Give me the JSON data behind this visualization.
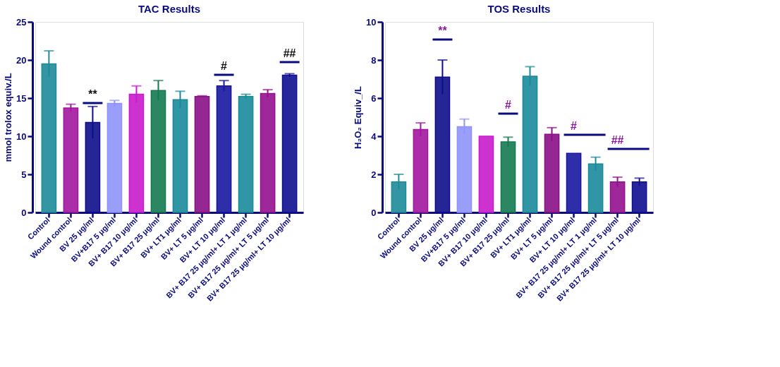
{
  "chart_data": [
    {
      "type": "bar",
      "title": "TAC Results",
      "ylabel": "mmol trolox equiv./L",
      "categories": [
        "Control",
        "Wound control",
        "BV 25 μg/ml",
        "BV+B17 5 μg/ml",
        "BV+ B17 10 μg/ml",
        "BV+ B17 25 μg/ml",
        "BV+ LT1 μg/ml",
        "BV+ LT 5 μg/ml",
        "BV+ LT 10 μg/ml",
        "BV+ B17 25 μg/ml+ LT 1 μg/ml",
        "BV+ B17 25 μg/ml+ LT 5 μg/ml",
        "BV+ B17 25 μg/ml+ LT 10 μg/ml"
      ],
      "values": [
        19.5,
        13.7,
        11.8,
        14.3,
        15.5,
        16.0,
        14.8,
        15.2,
        16.6,
        15.2,
        15.6,
        18.0
      ],
      "errors": [
        1.7,
        0.5,
        2.1,
        0.4,
        1.1,
        1.3,
        1.1,
        0.1,
        0.7,
        0.3,
        0.5,
        0.2
      ],
      "colors": [
        "#1e8b99",
        "#a3169f",
        "#0d0d8a",
        "#8f94fa",
        "#c81ccc",
        "#147a50",
        "#1a8a9a",
        "#8a1087",
        "#1717a0",
        "#1a8a9a",
        "#93108f",
        "#101090"
      ],
      "ylim": [
        0,
        25
      ],
      "yticks": [
        0,
        5,
        10,
        15,
        20,
        25
      ],
      "grid": false,
      "annotations": [
        "**",
        "#",
        "##"
      ]
    },
    {
      "type": "bar",
      "title": "TOS Results",
      "ylabel": "H₂O₂ Equiv_/L",
      "categories": [
        "Control",
        "Wound control",
        "BV 25 μg/ml",
        "BV+B17 5 μg/ml",
        "BV+ B17 10 μg/ml",
        "BV+ B17 25 μg/ml",
        "BV+ LT1 μg/ml",
        "BV+ LT 5 μg/ml",
        "BV+ LT 10 μg/ml",
        "BV+ B17 25 μg/ml+ LT 1 μg/ml",
        "BV+ B17 25 μg/ml+ LT 5 μg/ml",
        "BV+ B17 25 μg/ml+ LT 10 μg/ml"
      ],
      "values": [
        1.6,
        4.35,
        7.1,
        4.5,
        4.0,
        3.7,
        7.15,
        4.1,
        3.1,
        2.55,
        1.6,
        1.6
      ],
      "errors": [
        0.4,
        0.35,
        0.9,
        0.4,
        null,
        0.25,
        0.5,
        0.35,
        null,
        0.35,
        0.25,
        0.2
      ],
      "colors": [
        "#1e8b99",
        "#a3169f",
        "#0d0d8a",
        "#8f94fa",
        "#c81ccc",
        "#147a50",
        "#1a8a9a",
        "#8a1087",
        "#1717a0",
        "#1a8a9a",
        "#93108f",
        "#101090"
      ],
      "ylim": [
        0,
        10
      ],
      "yticks": [
        0,
        2,
        4,
        6,
        8,
        10
      ],
      "grid": false,
      "annotations": [
        "**",
        "#",
        "#",
        "##"
      ]
    }
  ]
}
